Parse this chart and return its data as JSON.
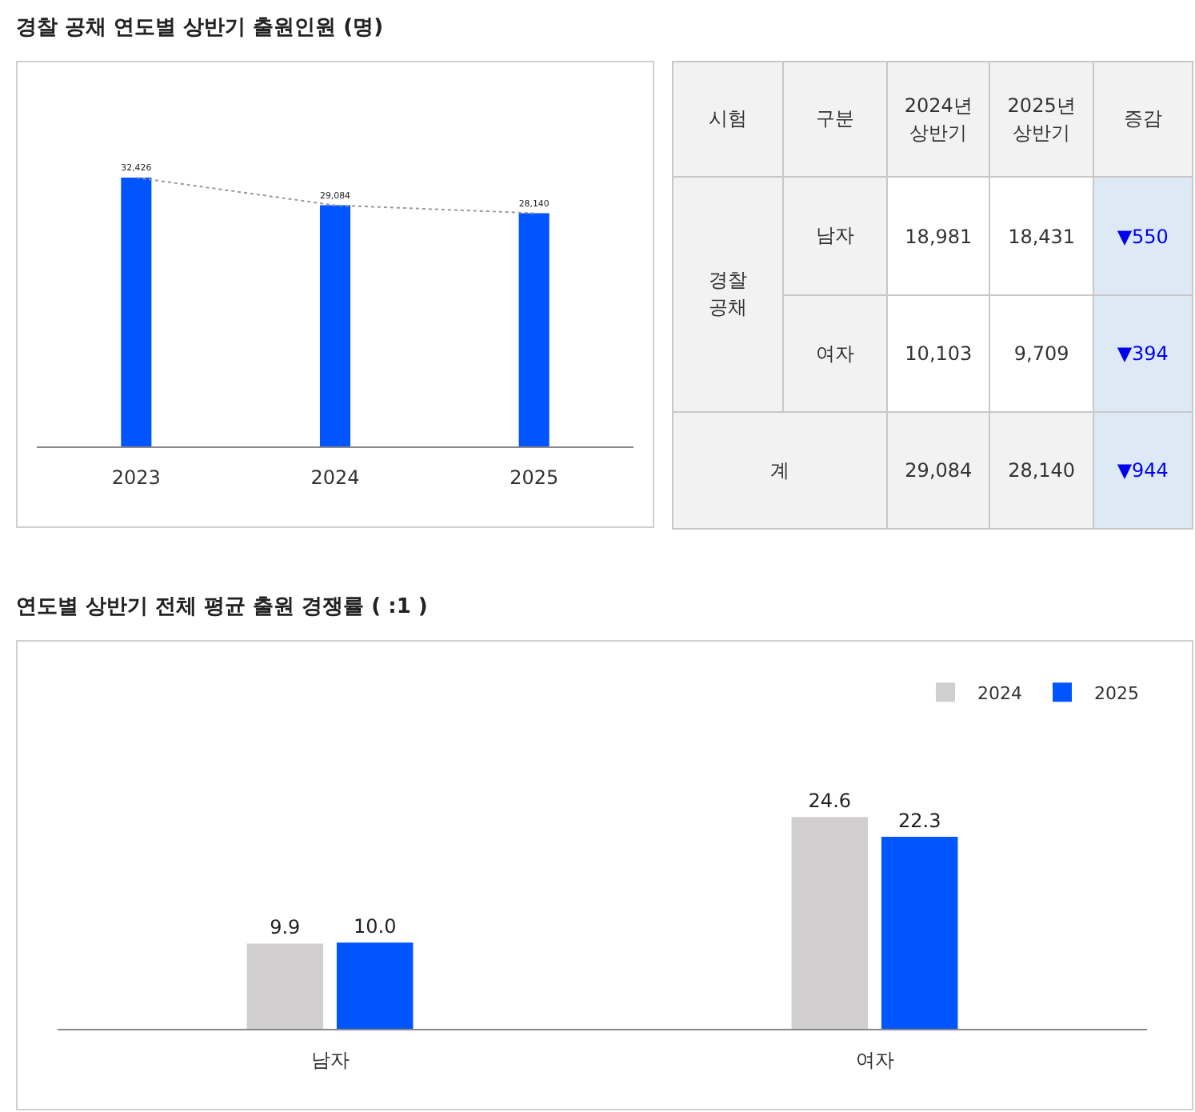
{
  "chart_data": [
    {
      "type": "bar",
      "title": "경찰 공채 연도별 상반기 출원인원 (명)",
      "categories": [
        "2023",
        "2024",
        "2025"
      ],
      "line_style": "dashed",
      "marker": "none",
      "series": [
        {
          "type": "bar",
          "color": "#0055ff",
          "values": [
            32426,
            29084,
            28140
          ],
          "value_labels": [
            "32,426",
            "29,084",
            "28,140"
          ]
        },
        {
          "type": "line",
          "color": "#999999",
          "values": [
            32426,
            29084,
            28140
          ]
        }
      ]
    },
    {
      "type": "other",
      "annotations": [
        "시험",
        "구분",
        "2024년\n상반기",
        "2025년\n상반기",
        "증감",
        "경찰\n공채",
        "남자",
        "18,981",
        "18,431",
        "▼550",
        "여자",
        "10,103",
        "9,709",
        "▼394",
        "계",
        "29,084",
        "28,140",
        "▼944"
      ]
    },
    {
      "type": "bar",
      "title": "연도별 상반기 전체 평균 출원 경쟁률 ( :1 )",
      "categories": [
        "남자",
        "여자"
      ],
      "legend": "top right",
      "series": [
        {
          "name": "2024",
          "color": "#d0cece",
          "values": [
            9.9,
            24.6
          ],
          "value_labels": [
            "9.9",
            "24.6"
          ]
        },
        {
          "name": "2025",
          "color": "#0055ff",
          "values": [
            10.0,
            22.3
          ],
          "value_labels": [
            "10.0",
            "22.3"
          ]
        }
      ]
    }
  ]
}
